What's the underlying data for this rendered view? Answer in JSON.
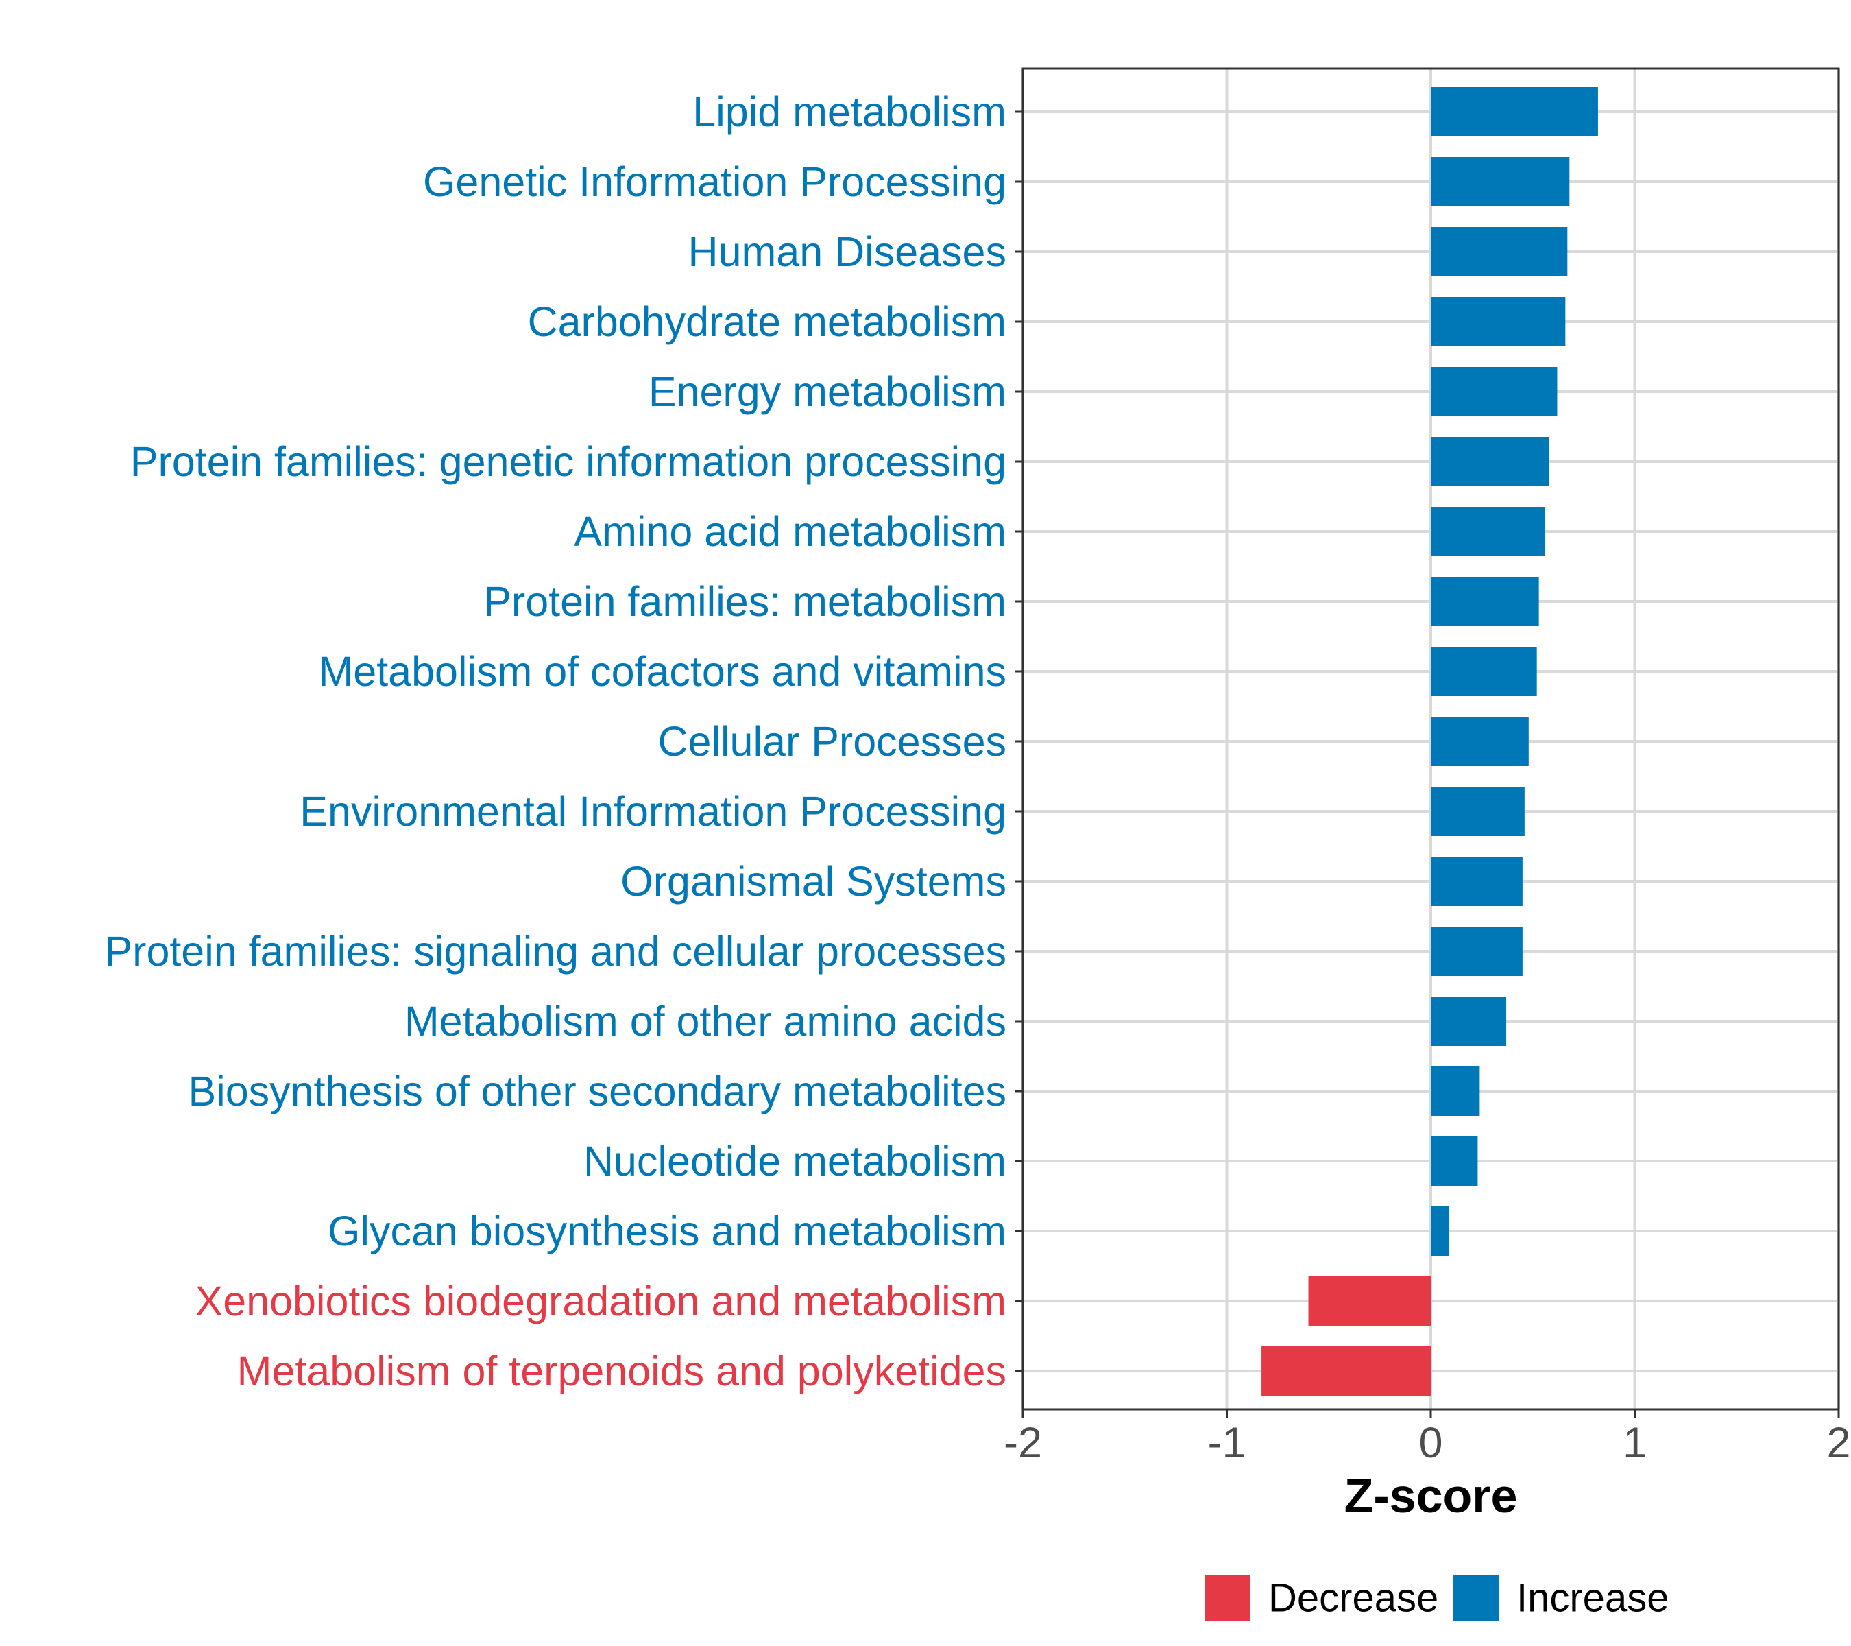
{
  "colors": {
    "increase": "#0077B6",
    "decrease": "#E63946"
  },
  "chart_data": {
    "type": "bar",
    "orientation": "horizontal",
    "title": "",
    "xlabel": "Z-score",
    "ylabel": "",
    "xlim": [
      -2,
      2
    ],
    "xticks": [
      -2,
      -1,
      0,
      1,
      2
    ],
    "xtick_labels": [
      "-2",
      "-1",
      "0",
      "1",
      "2"
    ],
    "grid": true,
    "legend_position": "bottom",
    "categories": [
      "Lipid metabolism",
      "Genetic Information Processing",
      "Human Diseases",
      "Carbohydrate metabolism",
      "Energy metabolism",
      "Protein families: genetic information processing",
      "Amino acid metabolism",
      "Protein families: metabolism",
      "Metabolism of cofactors and vitamins",
      "Cellular Processes",
      "Environmental Information Processing",
      "Organismal Systems",
      "Protein families: signaling and cellular processes",
      "Metabolism of other amino acids",
      "Biosynthesis of other secondary metabolites",
      "Nucleotide metabolism",
      "Glycan biosynthesis and metabolism",
      "Xenobiotics biodegradation and metabolism",
      "Metabolism of terpenoids and polyketides"
    ],
    "values": [
      0.82,
      0.68,
      0.67,
      0.66,
      0.62,
      0.58,
      0.56,
      0.53,
      0.52,
      0.48,
      0.46,
      0.45,
      0.45,
      0.37,
      0.24,
      0.23,
      0.09,
      -0.6,
      -0.83
    ],
    "groups": [
      "Increase",
      "Increase",
      "Increase",
      "Increase",
      "Increase",
      "Increase",
      "Increase",
      "Increase",
      "Increase",
      "Increase",
      "Increase",
      "Increase",
      "Increase",
      "Increase",
      "Increase",
      "Increase",
      "Increase",
      "Decrease",
      "Decrease"
    ],
    "legend": [
      {
        "label": "Decrease",
        "color": "#E63946"
      },
      {
        "label": "Increase",
        "color": "#0077B6"
      }
    ]
  }
}
